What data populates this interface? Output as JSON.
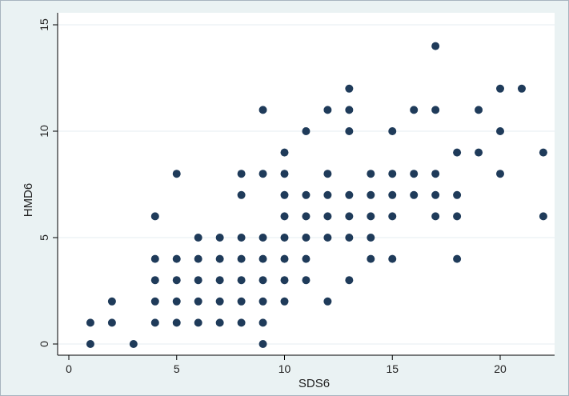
{
  "chart_data": {
    "type": "scatter",
    "title": "",
    "xlabel": "SDS6",
    "ylabel": "HMD6",
    "xlim": [
      0,
      22
    ],
    "ylim": [
      0,
      15
    ],
    "xticks": [
      0,
      5,
      10,
      15,
      20
    ],
    "yticks": [
      0,
      5,
      10,
      15
    ],
    "grid": "horizontal",
    "colors": {
      "background": "#eaf2f3",
      "plot_area": "#ffffff",
      "marker": "#1f3b5a",
      "grid": "#e6eef0",
      "axis": "#000000"
    },
    "points": [
      [
        1,
        0
      ],
      [
        1,
        1
      ],
      [
        2,
        1
      ],
      [
        2,
        2
      ],
      [
        3,
        0
      ],
      [
        4,
        1
      ],
      [
        4,
        2
      ],
      [
        4,
        3
      ],
      [
        4,
        4
      ],
      [
        4,
        6
      ],
      [
        5,
        1
      ],
      [
        5,
        2
      ],
      [
        5,
        3
      ],
      [
        5,
        4
      ],
      [
        5,
        8
      ],
      [
        6,
        1
      ],
      [
        6,
        2
      ],
      [
        6,
        3
      ],
      [
        6,
        4
      ],
      [
        6,
        5
      ],
      [
        7,
        1
      ],
      [
        7,
        2
      ],
      [
        7,
        3
      ],
      [
        7,
        4
      ],
      [
        7,
        5
      ],
      [
        8,
        1
      ],
      [
        8,
        2
      ],
      [
        8,
        3
      ],
      [
        8,
        4
      ],
      [
        8,
        5
      ],
      [
        8,
        7
      ],
      [
        8,
        8
      ],
      [
        9,
        0
      ],
      [
        9,
        1
      ],
      [
        9,
        2
      ],
      [
        9,
        3
      ],
      [
        9,
        4
      ],
      [
        9,
        5
      ],
      [
        9,
        8
      ],
      [
        9,
        11
      ],
      [
        10,
        2
      ],
      [
        10,
        3
      ],
      [
        10,
        4
      ],
      [
        10,
        5
      ],
      [
        10,
        6
      ],
      [
        10,
        7
      ],
      [
        10,
        8
      ],
      [
        10,
        9
      ],
      [
        11,
        3
      ],
      [
        11,
        4
      ],
      [
        11,
        5
      ],
      [
        11,
        6
      ],
      [
        11,
        7
      ],
      [
        11,
        10
      ],
      [
        12,
        2
      ],
      [
        12,
        5
      ],
      [
        12,
        6
      ],
      [
        12,
        7
      ],
      [
        12,
        8
      ],
      [
        12,
        11
      ],
      [
        13,
        3
      ],
      [
        13,
        5
      ],
      [
        13,
        6
      ],
      [
        13,
        7
      ],
      [
        13,
        10
      ],
      [
        13,
        11
      ],
      [
        13,
        12
      ],
      [
        14,
        4
      ],
      [
        14,
        5
      ],
      [
        14,
        6
      ],
      [
        14,
        7
      ],
      [
        14,
        8
      ],
      [
        15,
        4
      ],
      [
        15,
        6
      ],
      [
        15,
        7
      ],
      [
        15,
        8
      ],
      [
        15,
        10
      ],
      [
        16,
        7
      ],
      [
        16,
        8
      ],
      [
        16,
        11
      ],
      [
        17,
        6
      ],
      [
        17,
        7
      ],
      [
        17,
        8
      ],
      [
        17,
        11
      ],
      [
        17,
        14
      ],
      [
        18,
        4
      ],
      [
        18,
        6
      ],
      [
        18,
        7
      ],
      [
        18,
        9
      ],
      [
        19,
        9
      ],
      [
        19,
        11
      ],
      [
        20,
        8
      ],
      [
        20,
        10
      ],
      [
        20,
        12
      ],
      [
        21,
        12
      ],
      [
        22,
        6
      ],
      [
        22,
        9
      ]
    ]
  }
}
